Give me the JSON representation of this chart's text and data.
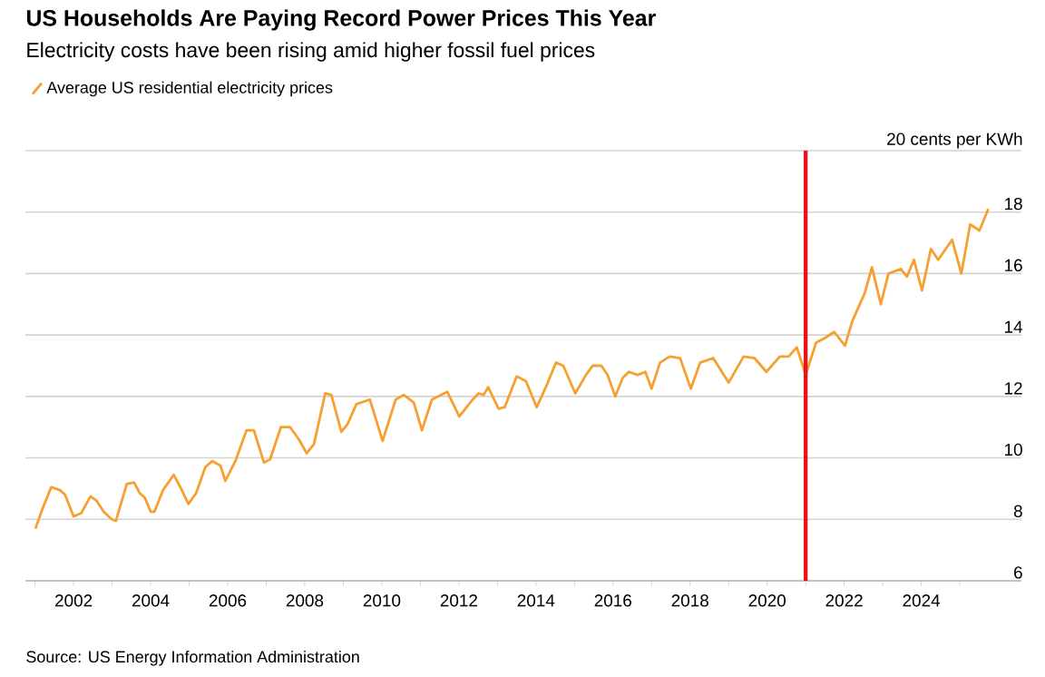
{
  "chart_data": {
    "type": "line",
    "title": "US Households Are Paying Record Power Prices This Year",
    "subtitle": "Electricity costs have been rising amid higher fossil fuel prices",
    "annotations": [
      "Source: US Energy Information Administration"
    ],
    "xlim": [
      2000.75,
      2026.6
    ],
    "xticks": [
      {
        "value": 2001,
        "label": null
      },
      2002,
      {
        "value": 2003,
        "label": null
      },
      2004,
      {
        "value": 2005,
        "label": null
      },
      2006,
      {
        "value": 2007,
        "label": null
      },
      2008,
      {
        "value": 2009,
        "label": null
      },
      2010,
      {
        "value": 2011,
        "label": null
      },
      2012,
      {
        "value": 2013,
        "label": null
      },
      2014,
      {
        "value": 2015,
        "label": null
      },
      2016,
      {
        "value": 2017,
        "label": null
      },
      2018,
      {
        "value": 2019,
        "label": null
      },
      2020,
      {
        "value": 2021,
        "label": null
      },
      2022,
      {
        "value": 2023,
        "label": null
      },
      2024,
      {
        "value": 2025,
        "label": null
      }
    ],
    "ylim": [
      6,
      20
    ],
    "yticks": [
      6,
      8,
      10,
      12,
      14,
      16,
      18,
      {
        "value": 20,
        "label": "20 cents per KWh"
      }
    ],
    "grid": "y",
    "legend": "top left",
    "marker": "none",
    "line_style": "solid",
    "ref_lines": [
      {
        "axis": "x",
        "value": 2021,
        "color": "#e8141c"
      }
    ],
    "series": [
      {
        "name": "Average US residential electricity prices",
        "color": "#f5a031",
        "x": [
          2001.01,
          2001.18,
          2001.42,
          2001.65,
          2001.78,
          2002.0,
          2002.2,
          2002.44,
          2002.6,
          2002.78,
          2002.99,
          2003.1,
          2003.38,
          2003.57,
          2003.72,
          2003.85,
          2004.0,
          2004.1,
          2004.32,
          2004.6,
          2004.79,
          2004.98,
          2005.18,
          2005.42,
          2005.6,
          2005.81,
          2005.94,
          2006.2,
          2006.49,
          2006.68,
          2006.94,
          2007.1,
          2007.38,
          2007.62,
          2007.85,
          2008.05,
          2008.24,
          2008.53,
          2008.69,
          2008.95,
          2009.11,
          2009.34,
          2009.69,
          2010.02,
          2010.36,
          2010.57,
          2010.83,
          2011.04,
          2011.3,
          2011.7,
          2012.01,
          2012.36,
          2012.51,
          2012.64,
          2012.76,
          2013.03,
          2013.19,
          2013.5,
          2013.74,
          2014.02,
          2014.29,
          2014.52,
          2014.71,
          2015.02,
          2015.3,
          2015.47,
          2015.7,
          2015.86,
          2016.06,
          2016.25,
          2016.41,
          2016.64,
          2016.84,
          2017.0,
          2017.22,
          2017.47,
          2017.74,
          2018.02,
          2018.26,
          2018.6,
          2019.0,
          2019.39,
          2019.67,
          2019.98,
          2020.33,
          2020.56,
          2020.77,
          2021.0,
          2021.27,
          2021.5,
          2021.74,
          2022.02,
          2022.21,
          2022.53,
          2022.72,
          2022.95,
          2023.15,
          2023.47,
          2023.63,
          2023.81,
          2024.02,
          2024.25,
          2024.44,
          2024.8,
          2025.04,
          2025.27,
          2025.51,
          2025.74
        ],
        "values": [
          7.7,
          8.3,
          9.05,
          8.95,
          8.8,
          8.1,
          8.2,
          8.75,
          8.6,
          8.25,
          8.0,
          7.95,
          9.15,
          9.2,
          8.85,
          8.7,
          8.25,
          8.25,
          8.95,
          9.45,
          9.0,
          8.5,
          8.85,
          9.7,
          9.9,
          9.75,
          9.25,
          9.9,
          10.9,
          10.9,
          9.85,
          9.95,
          11.0,
          11.0,
          10.6,
          10.15,
          10.45,
          12.1,
          12.05,
          10.85,
          11.1,
          11.75,
          11.9,
          10.55,
          11.9,
          12.05,
          11.8,
          10.9,
          11.9,
          12.15,
          11.35,
          11.9,
          12.1,
          12.05,
          12.3,
          11.6,
          11.65,
          12.65,
          12.5,
          11.65,
          12.4,
          13.1,
          13.0,
          12.1,
          12.7,
          13.0,
          13.0,
          12.7,
          12.0,
          12.6,
          12.8,
          12.7,
          12.8,
          12.25,
          13.1,
          13.3,
          13.25,
          12.25,
          13.1,
          13.25,
          12.45,
          13.3,
          13.25,
          12.8,
          13.3,
          13.3,
          13.6,
          12.7,
          13.75,
          13.9,
          14.1,
          13.65,
          14.45,
          15.35,
          16.2,
          15.0,
          16.0,
          16.15,
          15.9,
          16.45,
          15.45,
          16.8,
          16.45,
          17.1,
          16.0,
          17.6,
          17.4,
          18.1
        ]
      }
    ]
  }
}
